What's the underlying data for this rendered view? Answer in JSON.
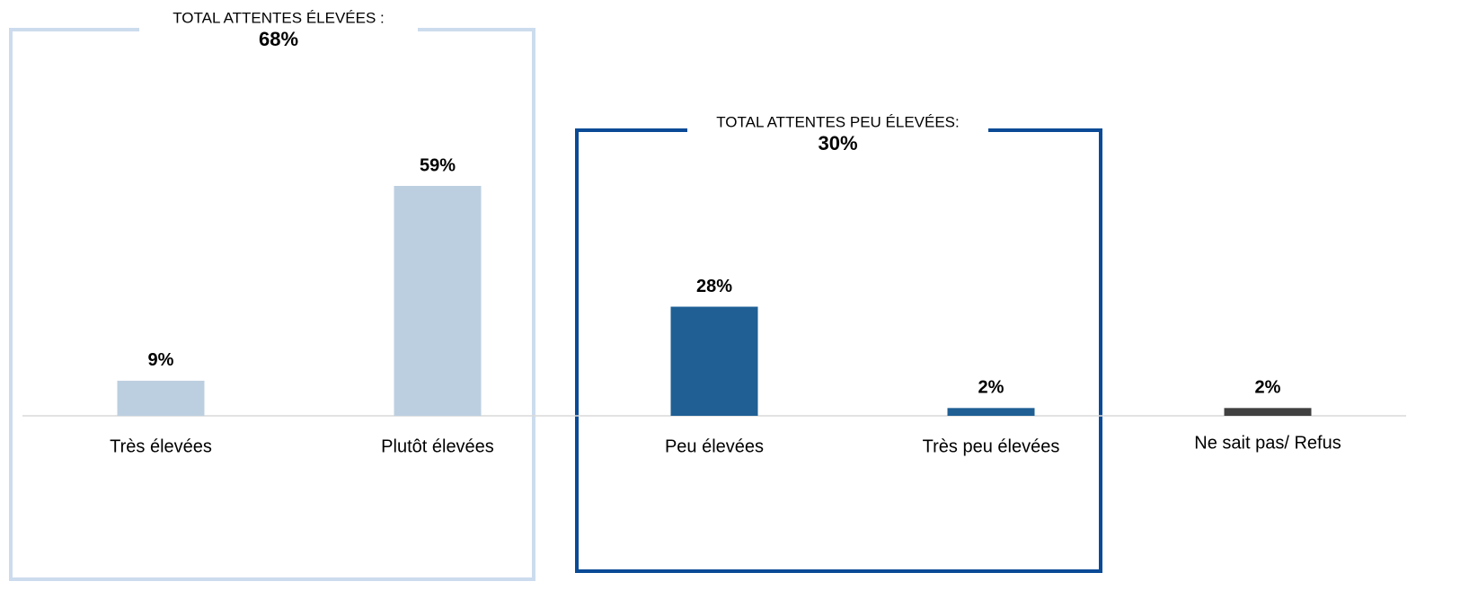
{
  "chart_data": {
    "type": "bar",
    "categories": [
      "Très élevées",
      "Plutôt élevées",
      "Peu élevées",
      "Très peu élevées",
      "Ne sait pas/ Refus"
    ],
    "values": [
      9,
      59,
      28,
      2,
      2
    ],
    "value_labels": [
      "9%",
      "59%",
      "28%",
      "2%",
      "2%"
    ],
    "colors": [
      "#bccfe0",
      "#bccfe0",
      "#1f5f94",
      "#1f5f94",
      "#404040"
    ],
    "groups": [
      {
        "title": "TOTAL ATTENTES ÉLEVÉES :",
        "total": 68,
        "total_label": "68%",
        "color": "#ccdcee"
      },
      {
        "title": "TOTAL ATTENTES PEU ÉLEVÉES:",
        "total": 30,
        "total_label": "30%",
        "color": "#0a4a96"
      }
    ]
  }
}
